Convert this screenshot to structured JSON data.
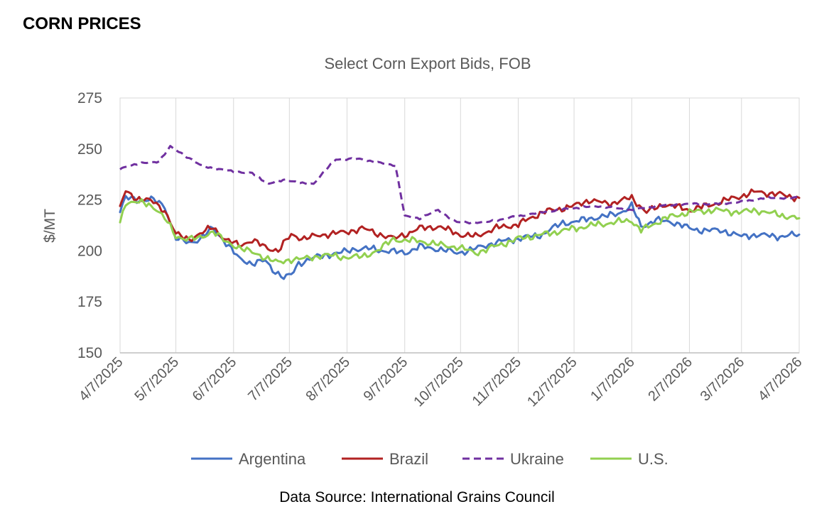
{
  "header": {
    "title": "CORN PRICES"
  },
  "footer": {
    "source": "Data Source: International Grains Council"
  },
  "chart_data": {
    "type": "line",
    "title": "Select Corn Export Bids, FOB",
    "xlabel": "",
    "ylabel": "$/MT",
    "ylim": [
      150,
      275
    ],
    "yticks": [
      150,
      175,
      200,
      225,
      250,
      275
    ],
    "xlim": [
      "2025-04-07",
      "2026-04-07"
    ],
    "xtick_labels": [
      "4/7/2025",
      "5/7/2025",
      "6/7/2025",
      "7/7/2025",
      "8/7/2025",
      "9/7/2025",
      "10/7/2025",
      "11/7/2025",
      "12/7/2025",
      "1/7/2026",
      "2/7/2026",
      "3/7/2026",
      "4/7/2026"
    ],
    "xtick_dates": [
      "2025-04-07",
      "2025-05-07",
      "2025-06-07",
      "2025-07-07",
      "2025-08-07",
      "2025-09-07",
      "2025-10-07",
      "2025-11-07",
      "2025-12-07",
      "2026-01-07",
      "2026-02-07",
      "2026-03-07",
      "2026-04-07"
    ],
    "grid": "vertical",
    "legend": "bottom",
    "series": [
      {
        "name": "Argentina",
        "color": "#4472c4",
        "dash": "solid",
        "points": [
          [
            "2025-04-07",
            219
          ],
          [
            "2025-04-10",
            226
          ],
          [
            "2025-04-16",
            225
          ],
          [
            "2025-04-25",
            225
          ],
          [
            "2025-05-01",
            222
          ],
          [
            "2025-05-07",
            206
          ],
          [
            "2025-05-14",
            204
          ],
          [
            "2025-05-20",
            206
          ],
          [
            "2025-05-27",
            211
          ],
          [
            "2025-06-03",
            204
          ],
          [
            "2025-06-10",
            196
          ],
          [
            "2025-06-17",
            194
          ],
          [
            "2025-06-24",
            195
          ],
          [
            "2025-06-28",
            191
          ],
          [
            "2025-07-04",
            187
          ],
          [
            "2025-07-08",
            188
          ],
          [
            "2025-07-12",
            194
          ],
          [
            "2025-07-18",
            196
          ],
          [
            "2025-07-26",
            198
          ],
          [
            "2025-08-04",
            199
          ],
          [
            "2025-08-10",
            201
          ],
          [
            "2025-08-20",
            201
          ],
          [
            "2025-08-28",
            200
          ],
          [
            "2025-09-07",
            199
          ],
          [
            "2025-09-15",
            202
          ],
          [
            "2025-09-25",
            201
          ],
          [
            "2025-10-05",
            199
          ],
          [
            "2025-10-15",
            201
          ],
          [
            "2025-10-25",
            204
          ],
          [
            "2025-11-07",
            206
          ],
          [
            "2025-11-20",
            208
          ],
          [
            "2025-12-01",
            214
          ],
          [
            "2025-12-07",
            214
          ],
          [
            "2025-12-15",
            216
          ],
          [
            "2025-12-25",
            217
          ],
          [
            "2026-01-01",
            219
          ],
          [
            "2026-01-07",
            222
          ],
          [
            "2026-01-12",
            212
          ],
          [
            "2026-01-20",
            215
          ],
          [
            "2026-01-30",
            214
          ],
          [
            "2026-02-07",
            211
          ],
          [
            "2026-02-15",
            210
          ],
          [
            "2026-02-25",
            210
          ],
          [
            "2026-03-07",
            207
          ],
          [
            "2026-03-15",
            208
          ],
          [
            "2026-03-25",
            207
          ],
          [
            "2026-04-07",
            208
          ]
        ]
      },
      {
        "name": "Brazil",
        "color": "#b22222",
        "dash": "solid",
        "points": [
          [
            "2025-04-07",
            222
          ],
          [
            "2025-04-10",
            229
          ],
          [
            "2025-04-16",
            226
          ],
          [
            "2025-04-25",
            224
          ],
          [
            "2025-05-01",
            220
          ],
          [
            "2025-05-07",
            208
          ],
          [
            "2025-05-14",
            206
          ],
          [
            "2025-05-20",
            208
          ],
          [
            "2025-05-27",
            212
          ],
          [
            "2025-06-03",
            205
          ],
          [
            "2025-06-10",
            203
          ],
          [
            "2025-06-17",
            205
          ],
          [
            "2025-06-24",
            202
          ],
          [
            "2025-07-01",
            200
          ],
          [
            "2025-07-08",
            208
          ],
          [
            "2025-07-15",
            206
          ],
          [
            "2025-07-25",
            208
          ],
          [
            "2025-08-05",
            209
          ],
          [
            "2025-08-15",
            211
          ],
          [
            "2025-08-22",
            209
          ],
          [
            "2025-09-01",
            206
          ],
          [
            "2025-09-07",
            208
          ],
          [
            "2025-09-15",
            211
          ],
          [
            "2025-09-25",
            212
          ],
          [
            "2025-10-07",
            208
          ],
          [
            "2025-10-15",
            207
          ],
          [
            "2025-10-25",
            211
          ],
          [
            "2025-11-07",
            213
          ],
          [
            "2025-11-20",
            219
          ],
          [
            "2025-12-07",
            222
          ],
          [
            "2025-12-15",
            225
          ],
          [
            "2025-12-25",
            223
          ],
          [
            "2026-01-07",
            226
          ],
          [
            "2026-01-15",
            219
          ],
          [
            "2026-01-25",
            223
          ],
          [
            "2026-02-07",
            220
          ],
          [
            "2026-02-20",
            223
          ],
          [
            "2026-03-07",
            227
          ],
          [
            "2026-03-15",
            229
          ],
          [
            "2026-03-25",
            228
          ],
          [
            "2026-04-07",
            226
          ]
        ]
      },
      {
        "name": "Ukraine",
        "color": "#7030a0",
        "dash": "dashed",
        "points": [
          [
            "2025-04-07",
            240
          ],
          [
            "2025-04-12",
            242
          ],
          [
            "2025-04-20",
            243
          ],
          [
            "2025-04-28",
            244
          ],
          [
            "2025-05-04",
            251
          ],
          [
            "2025-05-10",
            248
          ],
          [
            "2025-05-20",
            242
          ],
          [
            "2025-05-30",
            240
          ],
          [
            "2025-06-07",
            239
          ],
          [
            "2025-06-17",
            238
          ],
          [
            "2025-06-26",
            233
          ],
          [
            "2025-07-05",
            235
          ],
          [
            "2025-07-14",
            233
          ],
          [
            "2025-07-20",
            233
          ],
          [
            "2025-07-25",
            238
          ],
          [
            "2025-08-01",
            245
          ],
          [
            "2025-08-15",
            245
          ],
          [
            "2025-08-25",
            243
          ],
          [
            "2025-09-02",
            242
          ],
          [
            "2025-09-07",
            217
          ],
          [
            "2025-09-15",
            216
          ],
          [
            "2025-09-25",
            220
          ],
          [
            "2025-10-05",
            214
          ],
          [
            "2025-10-20",
            214
          ],
          [
            "2025-11-07",
            217
          ],
          [
            "2025-11-20",
            219
          ],
          [
            "2025-12-07",
            221
          ],
          [
            "2025-12-20",
            222
          ],
          [
            "2026-01-07",
            220
          ],
          [
            "2026-01-20",
            222
          ],
          [
            "2026-02-07",
            223
          ],
          [
            "2026-02-20",
            223
          ],
          [
            "2026-03-07",
            224
          ],
          [
            "2026-03-20",
            226
          ],
          [
            "2026-04-07",
            226
          ]
        ]
      },
      {
        "name": "U.S.",
        "color": "#92d050",
        "dash": "solid",
        "points": [
          [
            "2025-04-07",
            214
          ],
          [
            "2025-04-10",
            224
          ],
          [
            "2025-04-16",
            224
          ],
          [
            "2025-04-25",
            222
          ],
          [
            "2025-05-01",
            216
          ],
          [
            "2025-05-07",
            207
          ],
          [
            "2025-05-14",
            206
          ],
          [
            "2025-05-20",
            206
          ],
          [
            "2025-05-27",
            210
          ],
          [
            "2025-06-03",
            204
          ],
          [
            "2025-06-10",
            202
          ],
          [
            "2025-06-17",
            199
          ],
          [
            "2025-06-24",
            197
          ],
          [
            "2025-07-01",
            194
          ],
          [
            "2025-07-08",
            196
          ],
          [
            "2025-07-15",
            196
          ],
          [
            "2025-07-25",
            198
          ],
          [
            "2025-08-05",
            197
          ],
          [
            "2025-08-15",
            197
          ],
          [
            "2025-08-25",
            201
          ],
          [
            "2025-09-01",
            206
          ],
          [
            "2025-09-07",
            205
          ],
          [
            "2025-09-15",
            205
          ],
          [
            "2025-09-25",
            203
          ],
          [
            "2025-10-05",
            202
          ],
          [
            "2025-10-15",
            199
          ],
          [
            "2025-10-25",
            202
          ],
          [
            "2025-11-07",
            206
          ],
          [
            "2025-11-20",
            208
          ],
          [
            "2025-12-07",
            211
          ],
          [
            "2025-12-20",
            213
          ],
          [
            "2026-01-07",
            215
          ],
          [
            "2026-01-12",
            210
          ],
          [
            "2026-01-25",
            216
          ],
          [
            "2026-02-07",
            219
          ],
          [
            "2026-02-20",
            220
          ],
          [
            "2026-03-07",
            219
          ],
          [
            "2026-03-15",
            220
          ],
          [
            "2026-03-25",
            218
          ],
          [
            "2026-04-07",
            216
          ]
        ]
      }
    ]
  }
}
